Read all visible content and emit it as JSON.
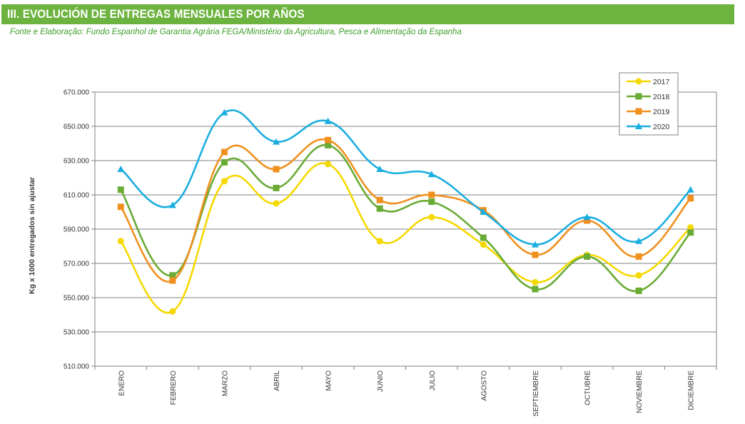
{
  "header": {
    "title": "III. EVOLUCIÓN DE ENTREGAS MENSUALES POR AÑOS",
    "source": "Fonte e Elaboração: Fundo Espanhol de Garantia Agrária FEGA/Ministério da Agricultura, Pesca e Alimentação da Espanha"
  },
  "colors": {
    "header_bg": "#6db33f",
    "source_text": "#3f9e2c",
    "grid": "#808080"
  },
  "chart_data": {
    "type": "line",
    "smooth": true,
    "categories": [
      "ENERO",
      "FEBRERO",
      "MARZO",
      "ABRIL",
      "MAYO",
      "JUNIO",
      "JULIO",
      "AGOSTO",
      "SEPTIEMBRE",
      "OCTUBRE",
      "NOVIEMBRE",
      "DICIEMBRE"
    ],
    "ylabel": "Kg x 1000 entregados sin ajustar",
    "xlabel": "",
    "ylim": [
      510000,
      670000
    ],
    "yticks": [
      510000,
      530000,
      550000,
      570000,
      590000,
      610000,
      630000,
      650000,
      670000
    ],
    "ytick_labels": [
      "510.000",
      "530.000",
      "550.000",
      "570.000",
      "590.000",
      "610.000",
      "630.000",
      "650.000",
      "670.000"
    ],
    "grid": "horizontal",
    "legend_position": "top-right",
    "series": [
      {
        "name": "2017",
        "color": "#f5d800",
        "marker": "circle",
        "values": [
          583000,
          542000,
          618000,
          605000,
          628000,
          583000,
          597000,
          581000,
          559000,
          575000,
          563000,
          591000
        ]
      },
      {
        "name": "2018",
        "color": "#6aab35",
        "marker": "square",
        "values": [
          613000,
          563000,
          629000,
          614000,
          639000,
          602000,
          606000,
          585000,
          555000,
          574000,
          554000,
          588000
        ]
      },
      {
        "name": "2019",
        "color": "#f0901e",
        "marker": "square",
        "values": [
          603000,
          560000,
          635000,
          625000,
          642000,
          607000,
          610000,
          601000,
          575000,
          595000,
          574000,
          608000
        ]
      },
      {
        "name": "2020",
        "color": "#1aaee0",
        "marker": "triangle",
        "values": [
          625000,
          604000,
          658000,
          641000,
          653000,
          625000,
          622000,
          600000,
          581000,
          597000,
          583000,
          613000
        ]
      }
    ]
  }
}
